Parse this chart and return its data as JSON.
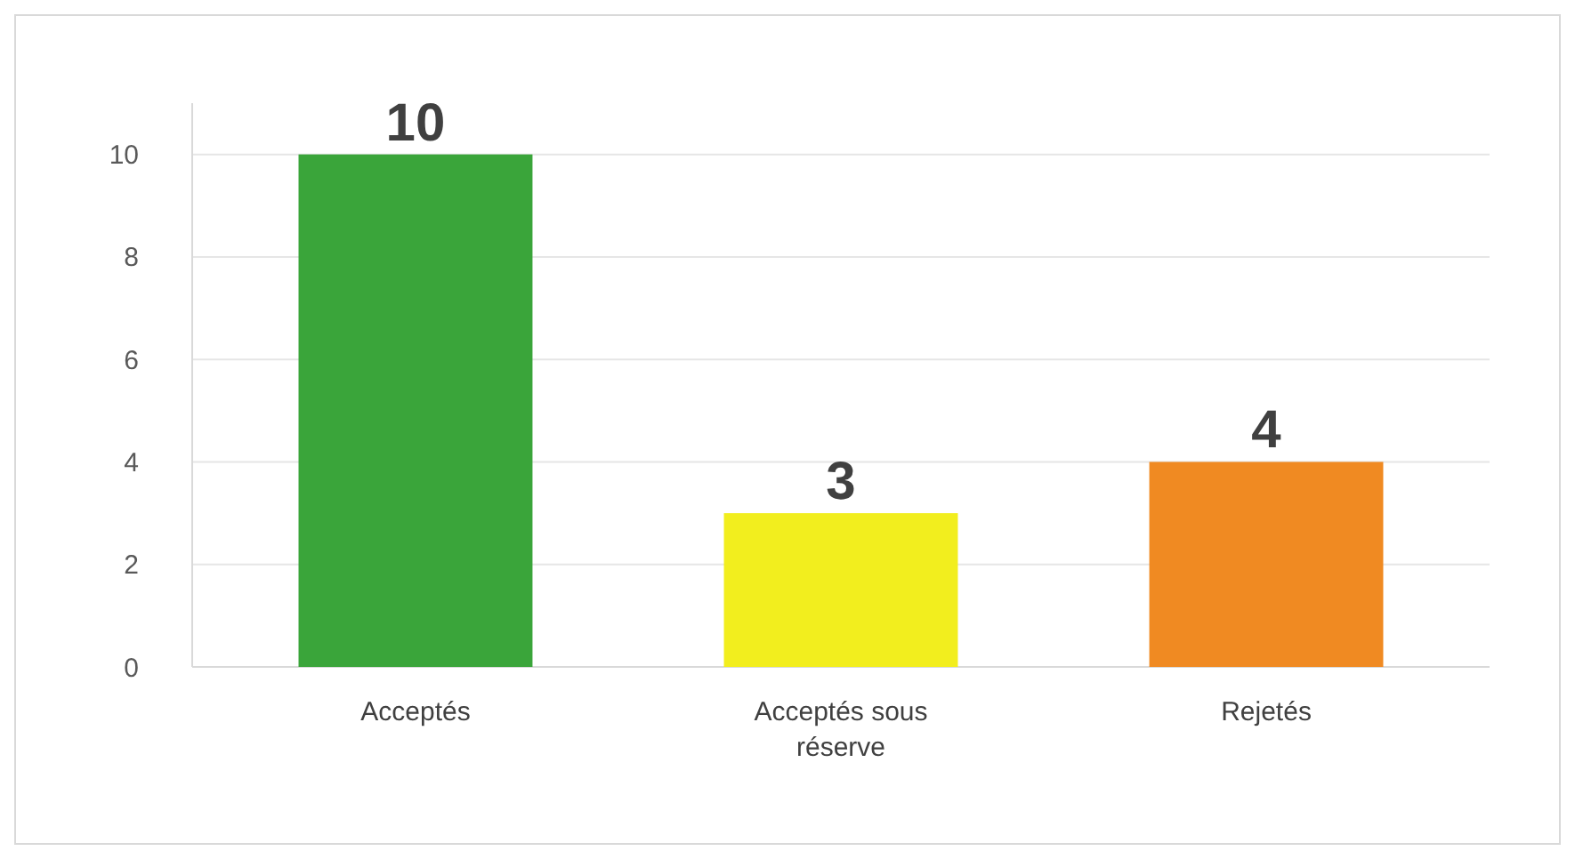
{
  "chart_data": {
    "type": "bar",
    "categories": [
      "Acceptés",
      "Acceptés sous réserve",
      "Rejetés"
    ],
    "values": [
      10,
      3,
      4
    ],
    "colors": [
      "#3aa53a",
      "#f2ee1e",
      "#f08a22"
    ],
    "ylim": [
      0,
      11
    ],
    "yticks": [
      0,
      2,
      4,
      6,
      8,
      10
    ],
    "grid": "y",
    "data_labels": true
  }
}
